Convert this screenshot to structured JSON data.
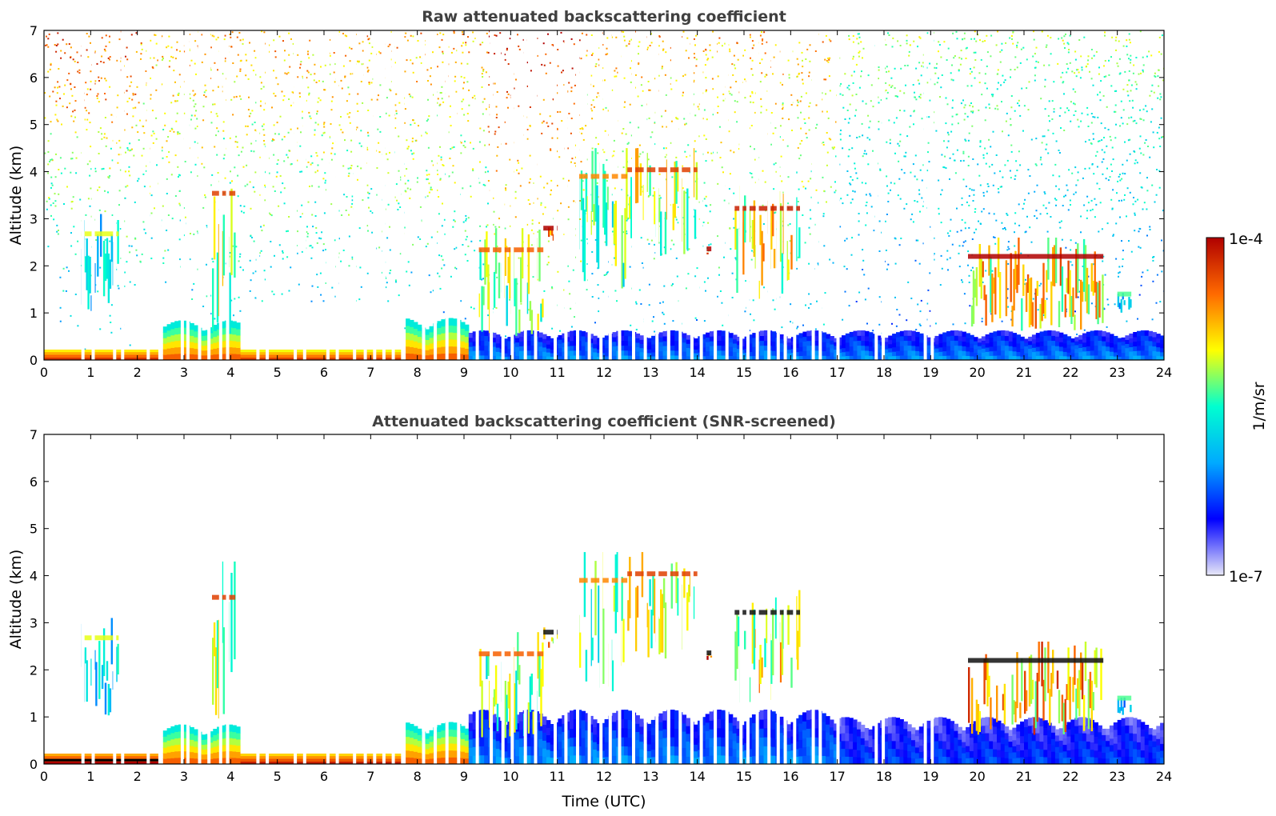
{
  "chart_data": [
    {
      "type": "heatmap",
      "title": "Raw attenuated backscattering coefficient",
      "xlabel": "",
      "ylabel": "Altitude (km)",
      "xlim": [
        0,
        24
      ],
      "ylim": [
        0,
        7
      ],
      "x_ticks": [
        "0",
        "1",
        "2",
        "3",
        "4",
        "5",
        "6",
        "7",
        "8",
        "9",
        "10",
        "11",
        "12",
        "13",
        "14",
        "15",
        "16",
        "17",
        "18",
        "19",
        "20",
        "21",
        "22",
        "23",
        "24"
      ],
      "y_ticks": [
        "0",
        "1",
        "2",
        "3",
        "4",
        "5",
        "6",
        "7"
      ],
      "noise_level": "high",
      "features": [
        {
          "kind": "surface_layer",
          "t0": 0.0,
          "t1": 2.5,
          "z0": 0.0,
          "z1": 0.22,
          "level": 0.92
        },
        {
          "kind": "surface_layer",
          "t0": 4.2,
          "t1": 7.7,
          "z0": 0.0,
          "z1": 0.22,
          "level": 0.9
        },
        {
          "kind": "boundary_layer",
          "t0": 2.55,
          "t1": 4.2,
          "z0": 0.0,
          "z1": 0.8,
          "level": 0.85
        },
        {
          "kind": "boundary_layer",
          "t0": 7.75,
          "t1": 9.1,
          "z0": 0.0,
          "z1": 0.85,
          "level": 0.85
        },
        {
          "kind": "boundary_layer",
          "t0": 9.1,
          "t1": 24.0,
          "z0": 0.0,
          "z1": 0.6,
          "level": 0.3
        },
        {
          "kind": "cloud",
          "t0": 3.6,
          "t1": 4.1,
          "z0": 0.5,
          "z1": 4.3,
          "level": 0.75
        },
        {
          "kind": "cloud",
          "t0": 0.8,
          "t1": 1.6,
          "z0": 1.0,
          "z1": 3.1,
          "level": 0.5
        },
        {
          "kind": "cloud",
          "t0": 9.3,
          "t1": 10.7,
          "z0": 0.5,
          "z1": 2.8,
          "level": 0.7
        },
        {
          "kind": "cloud",
          "t0": 10.7,
          "t1": 11.0,
          "z0": 2.4,
          "z1": 2.9,
          "level": 0.9
        },
        {
          "kind": "cloud",
          "t0": 11.4,
          "t1": 12.5,
          "z0": 1.5,
          "z1": 4.5,
          "level": 0.65
        },
        {
          "kind": "cloud",
          "t0": 12.5,
          "t1": 14.0,
          "z0": 2.2,
          "z1": 4.5,
          "level": 0.75
        },
        {
          "kind": "cloud",
          "t0": 14.2,
          "t1": 14.3,
          "z0": 2.2,
          "z1": 2.4,
          "level": 0.95
        },
        {
          "kind": "cloud",
          "t0": 14.8,
          "t1": 16.2,
          "z0": 1.3,
          "z1": 3.7,
          "level": 0.8
        },
        {
          "kind": "cloud",
          "t0": 19.8,
          "t1": 22.7,
          "z0": 0.6,
          "z1": 2.6,
          "level": 0.85
        },
        {
          "kind": "cloud",
          "t0": 23.0,
          "t1": 23.3,
          "z0": 1.0,
          "z1": 1.5,
          "level": 0.4
        }
      ]
    },
    {
      "type": "heatmap",
      "title": "Attenuated backscattering coefficient (SNR-screened)",
      "xlabel": "Time (UTC)",
      "ylabel": "Altitude (km)",
      "xlim": [
        0,
        24
      ],
      "ylim": [
        0,
        7
      ],
      "x_ticks": [
        "0",
        "1",
        "2",
        "3",
        "4",
        "5",
        "6",
        "7",
        "8",
        "9",
        "10",
        "11",
        "12",
        "13",
        "14",
        "15",
        "16",
        "17",
        "18",
        "19",
        "20",
        "21",
        "22",
        "23",
        "24"
      ],
      "y_ticks": [
        "0",
        "1",
        "2",
        "3",
        "4",
        "5",
        "6",
        "7"
      ],
      "noise_level": "screened",
      "features": [
        {
          "kind": "surface_layer",
          "t0": 0.0,
          "t1": 2.5,
          "z0": 0.0,
          "z1": 0.22,
          "level": 1.0
        },
        {
          "kind": "surface_layer",
          "t0": 4.2,
          "t1": 7.7,
          "z0": 0.0,
          "z1": 0.22,
          "level": 0.95
        },
        {
          "kind": "boundary_layer",
          "t0": 2.55,
          "t1": 4.2,
          "z0": 0.0,
          "z1": 0.8,
          "level": 0.85
        },
        {
          "kind": "boundary_layer",
          "t0": 7.75,
          "t1": 9.1,
          "z0": 0.0,
          "z1": 0.85,
          "level": 0.85
        },
        {
          "kind": "boundary_layer",
          "t0": 9.1,
          "t1": 17.0,
          "z0": 0.0,
          "z1": 1.1,
          "level": 0.3
        },
        {
          "kind": "boundary_layer",
          "t0": 17.0,
          "t1": 24.0,
          "z0": 0.0,
          "z1": 0.95,
          "level": 0.22
        },
        {
          "kind": "cloud",
          "t0": 3.6,
          "t1": 4.1,
          "z0": 0.5,
          "z1": 4.3,
          "level": 0.75
        },
        {
          "kind": "cloud",
          "t0": 0.8,
          "t1": 1.6,
          "z0": 1.0,
          "z1": 3.1,
          "level": 0.5
        },
        {
          "kind": "cloud",
          "t0": 9.3,
          "t1": 10.7,
          "z0": 0.5,
          "z1": 2.8,
          "level": 0.7
        },
        {
          "kind": "cloud",
          "t0": 10.7,
          "t1": 11.0,
          "z0": 2.4,
          "z1": 2.9,
          "level": 0.9
        },
        {
          "kind": "cloud",
          "t0": 11.4,
          "t1": 12.5,
          "z0": 1.5,
          "z1": 4.5,
          "level": 0.65
        },
        {
          "kind": "cloud",
          "t0": 12.5,
          "t1": 14.0,
          "z0": 2.2,
          "z1": 4.5,
          "level": 0.75
        },
        {
          "kind": "cloud",
          "t0": 14.2,
          "t1": 14.3,
          "z0": 2.2,
          "z1": 2.4,
          "level": 1.0
        },
        {
          "kind": "cloud",
          "t0": 14.8,
          "t1": 16.2,
          "z0": 1.3,
          "z1": 3.7,
          "level": 0.8
        },
        {
          "kind": "cloud",
          "t0": 19.8,
          "t1": 22.7,
          "z0": 0.6,
          "z1": 2.6,
          "level": 0.9
        },
        {
          "kind": "cloud",
          "t0": 23.0,
          "t1": 23.3,
          "z0": 1.0,
          "z1": 1.5,
          "level": 0.4
        }
      ]
    }
  ],
  "colorbar": {
    "label": "1/m/sr",
    "max_label": "1e-4",
    "min_label": "1e-7",
    "scale": "log",
    "colormap": "jet",
    "colors": [
      "#e8e8f8",
      "#0000ff",
      "#00aaff",
      "#00ffd0",
      "#ffff00",
      "#ff6a00",
      "#b00000"
    ]
  },
  "data_gaps_utc": [
    0.8,
    1.02,
    1.48,
    1.65,
    2.2,
    2.45,
    2.93,
    3.05,
    3.3,
    3.5,
    3.75,
    3.9,
    4.55,
    4.75,
    5.35,
    5.55,
    6.05,
    6.25,
    6.62,
    6.85,
    7.05,
    7.25,
    7.45,
    7.65,
    8.1,
    8.35,
    8.6,
    8.85,
    9.25,
    9.55,
    9.8,
    10.0,
    10.28,
    10.5,
    10.92,
    11.15,
    11.4,
    11.65,
    11.9,
    12.1,
    12.3,
    12.6,
    12.85,
    13.1,
    13.35,
    13.6,
    13.85,
    14.05,
    14.35,
    14.6,
    14.9,
    15.05,
    15.25,
    15.5,
    15.7,
    15.85,
    16.05,
    16.45,
    16.6,
    16.98,
    17.8,
    17.95,
    18.85,
    19.0
  ]
}
